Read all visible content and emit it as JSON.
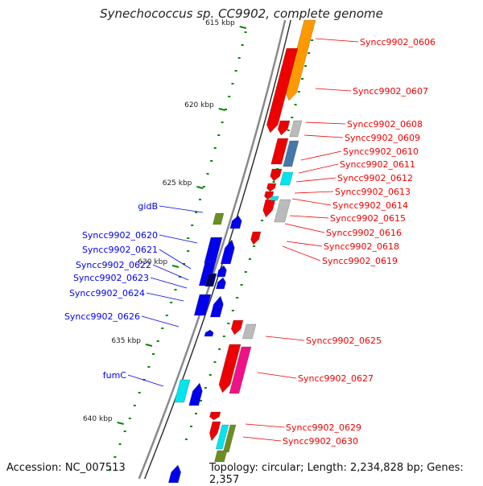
{
  "title": "Synechococcus sp. CC9902, complete genome",
  "accession": "Accession: NC_007513",
  "topology": "Topology: circular; Length: 2,234,828 bp; Genes: 2,357",
  "ticks": [
    "615 kbp",
    "620 kbp",
    "625 kbp",
    "630 kbp",
    "635 kbp",
    "640 kbp"
  ],
  "colors": {
    "forward": "#0000ee",
    "reverse": "#ee0000",
    "orange": "#ff9900",
    "grey": "#bbbbbb",
    "cyan": "#00e5ee",
    "olive": "#6b8e23",
    "magenta": "#ee1188",
    "steel": "#4477aa",
    "navy": "#000066",
    "tick": "#008800",
    "backbone": "#999999"
  },
  "labels_right": [
    "Syncc9902_0606",
    "Syncc9902_0607",
    "Syncc9902_0608",
    "Syncc9902_0609",
    "Syncc9902_0610",
    "Syncc9902_0611",
    "Syncc9902_0612",
    "Syncc9902_0613",
    "Syncc9902_0614",
    "Syncc9902_0615",
    "Syncc9902_0616",
    "Syncc9902_0618",
    "Syncc9902_0619",
    "Syncc9902_0625",
    "Syncc9902_0627",
    "Syncc9902_0629",
    "Syncc9902_0630"
  ],
  "labels_left": [
    "gidB",
    "Syncc9902_0620",
    "Syncc9902_0621",
    "Syncc9902_0622",
    "Syncc9902_0623",
    "Syncc9902_0624",
    "Syncc9902_0626",
    "fumC"
  ]
}
